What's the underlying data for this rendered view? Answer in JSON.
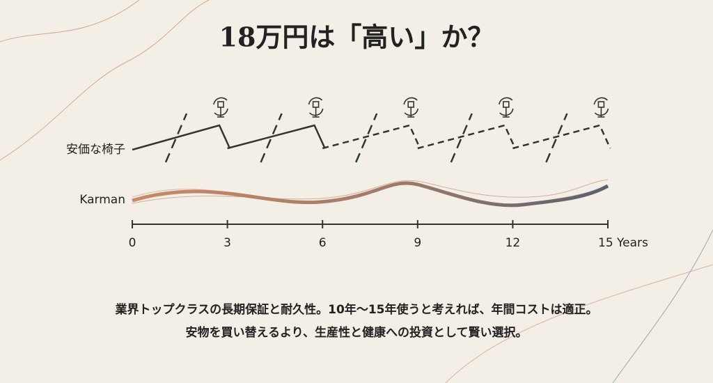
{
  "header": {
    "title": "18万円は「高い」か？"
  },
  "rows": [
    {
      "label": "安価な椅子"
    },
    {
      "label": "Karman"
    }
  ],
  "timeline": {
    "ticks": [
      "0",
      "3",
      "6",
      "9",
      "12",
      "15 Years"
    ]
  },
  "body": {
    "lines": [
      "業界トップクラスの長期保証と耐久性。10年〜15年使うと考えれば、年間コストは適正。",
      "安物を買い替えるより、生産性と健康への投資として賢い選択。"
    ]
  }
}
